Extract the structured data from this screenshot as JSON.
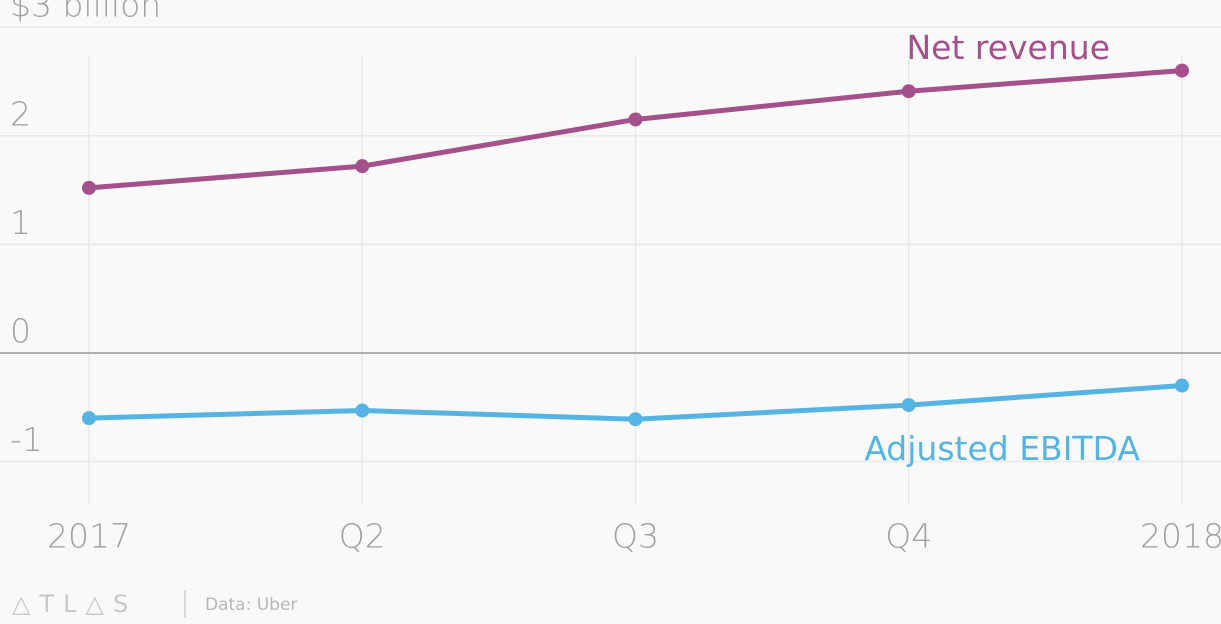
{
  "chart_data": {
    "type": "line",
    "categories": [
      "2017",
      "Q2",
      "Q3",
      "Q4",
      "2018"
    ],
    "series": [
      {
        "name": "Net revenue",
        "color": "#a4508b",
        "values": [
          1.52,
          1.72,
          2.15,
          2.41,
          2.6
        ]
      },
      {
        "name": "Adjusted EBITDA",
        "color": "#55b4e4",
        "values": [
          -0.6,
          -0.53,
          -0.61,
          -0.48,
          -0.3
        ]
      }
    ],
    "ylim": [
      -1.4,
      3.25
    ],
    "yticks": [
      -1,
      0,
      1,
      2,
      {
        "value": 3,
        "label": "$3 billion"
      }
    ],
    "grid": true,
    "logo": "△TL△S",
    "source": "Data: Uber"
  }
}
